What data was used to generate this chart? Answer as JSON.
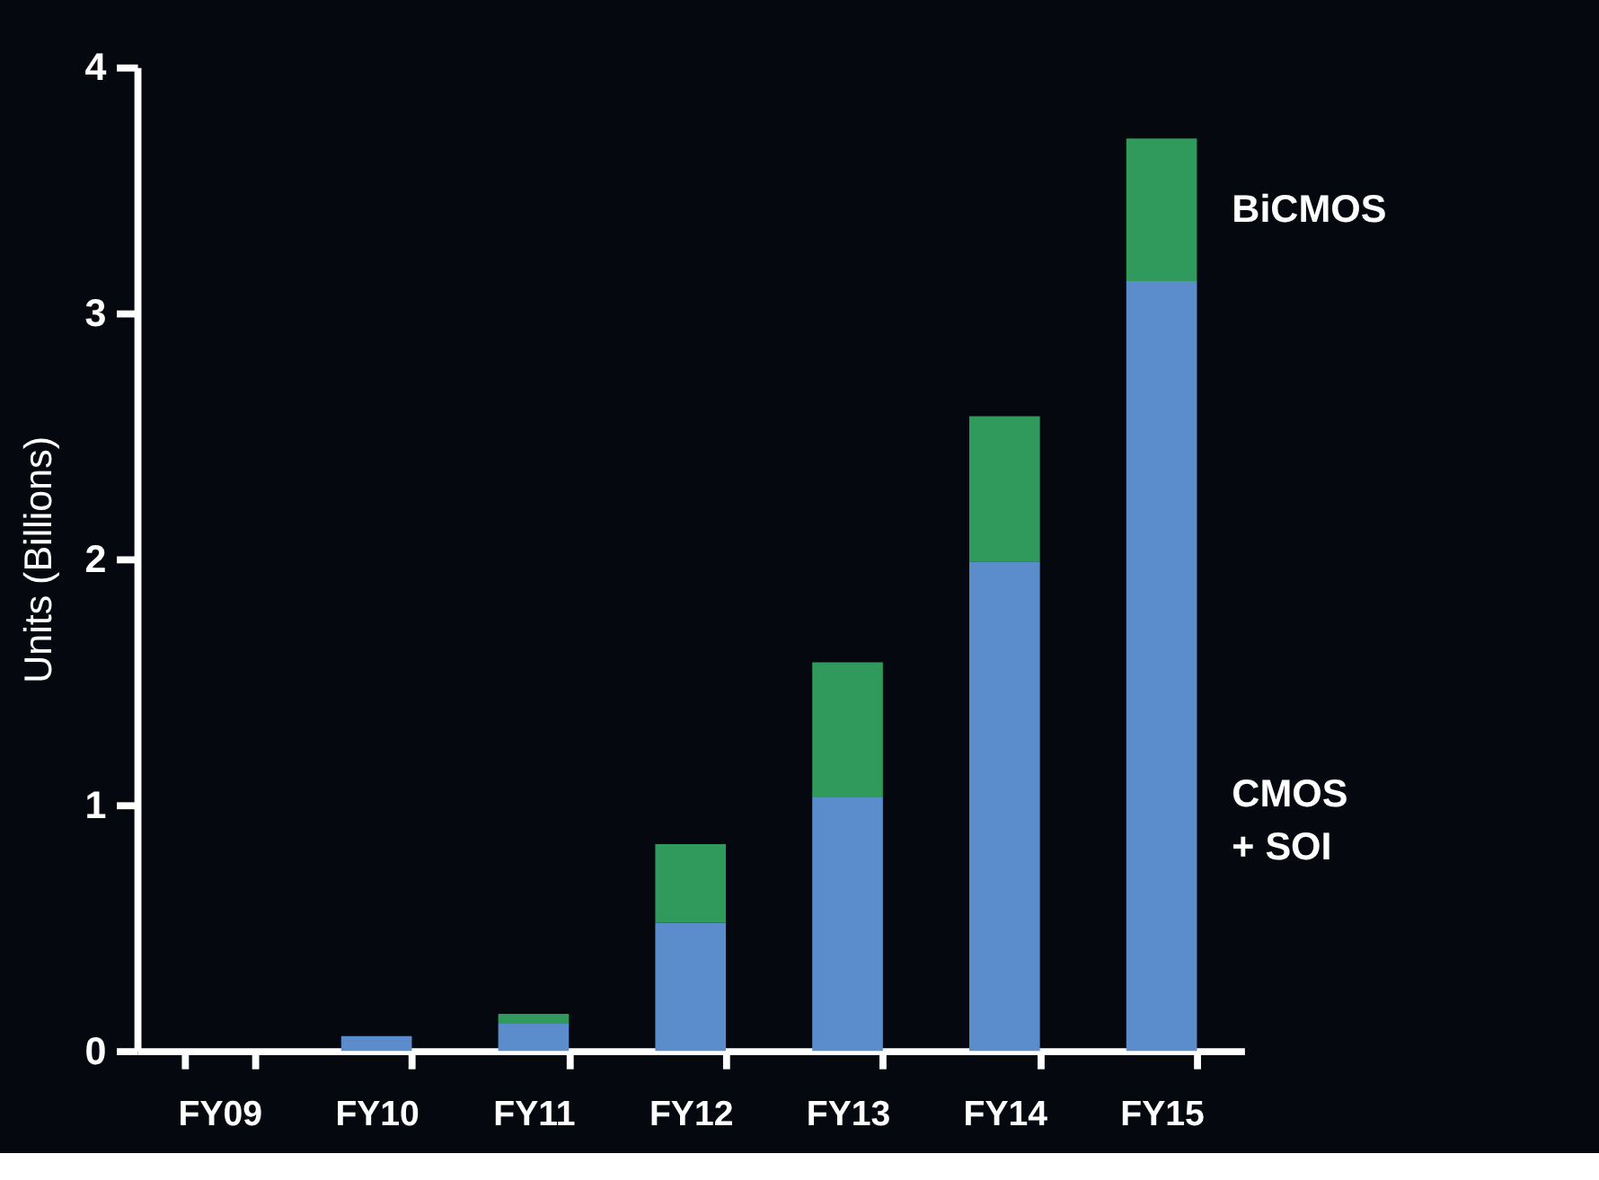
{
  "chart_data": {
    "type": "bar",
    "stacked": true,
    "ylabel": "Units (Billions)",
    "categories": [
      "FY09",
      "FY10",
      "FY11",
      "FY12",
      "FY13",
      "FY14",
      "FY15"
    ],
    "series": [
      {
        "name": "CMOS\n+ SOI",
        "color": "#5b8ccb",
        "values": [
          0,
          0.06,
          0.11,
          0.52,
          1.03,
          1.99,
          3.13
        ]
      },
      {
        "name": "BiCMOS",
        "color": "#2f9a5c",
        "values": [
          0,
          0,
          0.04,
          0.32,
          0.55,
          0.59,
          0.58
        ]
      }
    ],
    "ylim": [
      0,
      4
    ],
    "yticks": [
      0,
      1,
      2,
      3,
      4
    ]
  }
}
